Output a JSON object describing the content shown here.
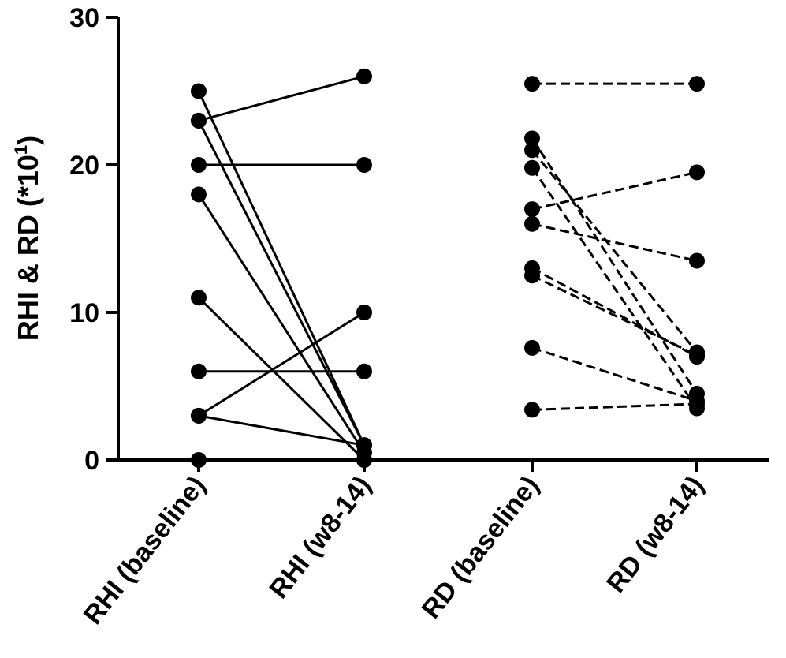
{
  "chart_data": {
    "type": "scatter",
    "title": "",
    "ylabel": "RHI & RD (*10",
    "ylabel_sup": "1",
    "ylabel_tail": ")",
    "ylim": [
      0,
      30
    ],
    "yticks": [
      0,
      10,
      20,
      30
    ],
    "categories": [
      "RHI (baseline)",
      "RHI (w8-14)",
      "RD (baseline)",
      "RD (w8-14)"
    ],
    "series": [
      {
        "group": "RHI",
        "line_style": "solid",
        "from_category": 0,
        "to_category": 1,
        "pairs": [
          [
            25,
            1
          ],
          [
            23,
            26
          ],
          [
            23,
            1
          ],
          [
            20,
            20
          ],
          [
            18,
            0.5
          ],
          [
            11,
            0
          ],
          [
            6,
            6
          ],
          [
            3,
            10
          ],
          [
            3,
            1
          ],
          [
            0,
            0
          ]
        ]
      },
      {
        "group": "RD",
        "line_style": "dashed",
        "from_category": 2,
        "to_category": 3,
        "pairs": [
          [
            25.5,
            25.5
          ],
          [
            21.8,
            4.5
          ],
          [
            21,
            7.3
          ],
          [
            19.8,
            3.5
          ],
          [
            17,
            19.5
          ],
          [
            16,
            13.5
          ],
          [
            13,
            7
          ],
          [
            12.5,
            7.1
          ],
          [
            7.6,
            4
          ],
          [
            3.4,
            3.8
          ]
        ]
      }
    ],
    "grid": false,
    "legend": "none"
  }
}
